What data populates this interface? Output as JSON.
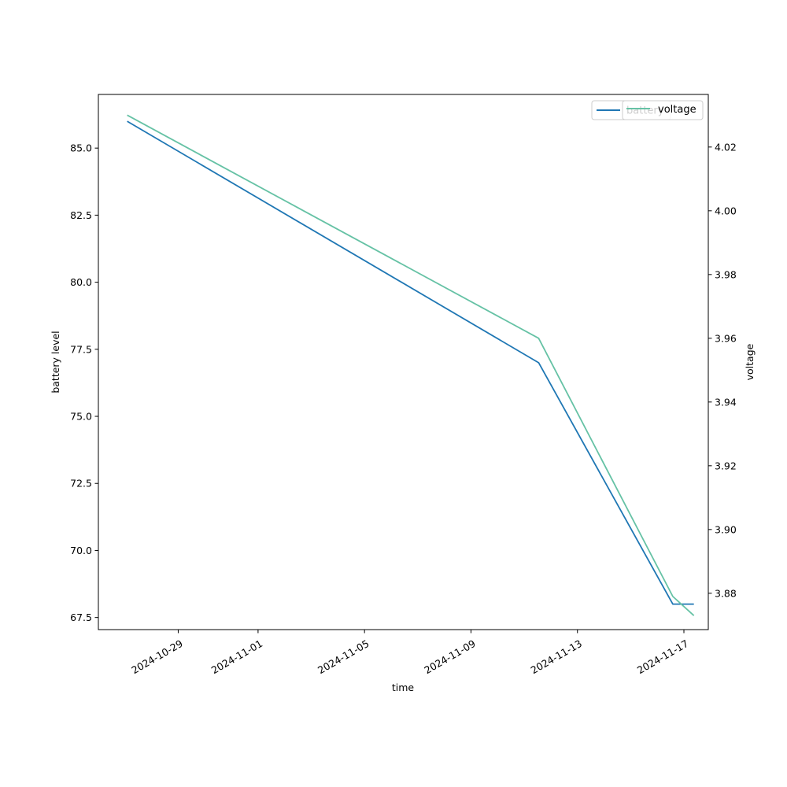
{
  "chart_data": {
    "type": "line",
    "xlabel": "time",
    "ylabel_left": "battery level",
    "ylabel_right": "voltage",
    "x_ticks": [
      "2024-10-29",
      "2024-11-01",
      "2024-11-05",
      "2024-11-09",
      "2024-11-13",
      "2024-11-17"
    ],
    "x_range": [
      "2024-10-26T00:00",
      "2024-11-17T22:00"
    ],
    "left_ylim": [
      67.05,
      87.0
    ],
    "left_ticks": [
      "67.5",
      "70.0",
      "72.5",
      "75.0",
      "77.5",
      "80.0",
      "82.5",
      "85.0"
    ],
    "right_ylim": [
      3.8686,
      4.0365
    ],
    "right_ticks": [
      "3.88",
      "3.90",
      "3.92",
      "3.94",
      "3.96",
      "3.98",
      "4.00",
      "4.02"
    ],
    "grid": false,
    "legend_placement": "top-right",
    "series": [
      {
        "name": "battery",
        "axis": "left",
        "color": "#1f77b4",
        "x": [
          "2024-10-27T02:00",
          "2024-11-11T13:00",
          "2024-11-16T14:00",
          "2024-11-17T09:00"
        ],
        "values": [
          86.0,
          77.0,
          68.0,
          68.0
        ]
      },
      {
        "name": "voltage",
        "axis": "right",
        "color": "#66c2a5",
        "x": [
          "2024-10-27T02:00",
          "2024-11-11T13:00",
          "2024-11-16T14:00",
          "2024-11-17T09:00"
        ],
        "values": [
          4.03,
          3.96,
          3.879,
          3.873
        ]
      }
    ]
  }
}
